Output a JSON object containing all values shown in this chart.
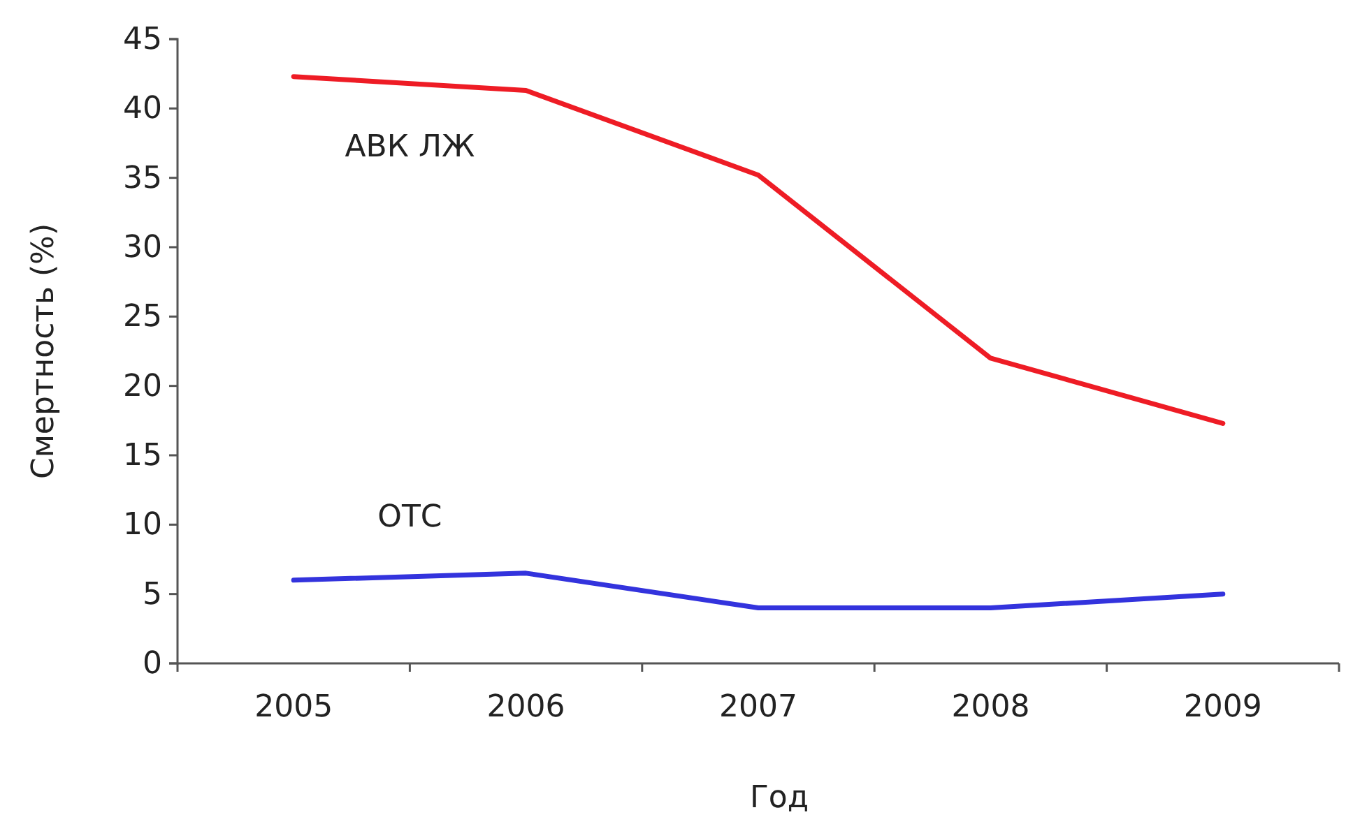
{
  "chart_data": {
    "type": "line",
    "xlabel": "Год",
    "ylabel": "Смертность (%)",
    "categories": [
      "2005",
      "2006",
      "2007",
      "2008",
      "2009"
    ],
    "series": [
      {
        "name": "АВК ЛЖ",
        "color": "#ee1c25",
        "values": [
          42.3,
          41.3,
          35.2,
          22,
          17.3
        ]
      },
      {
        "name": "ОТС",
        "color": "#3333dd",
        "values": [
          6,
          6.5,
          4,
          4,
          5
        ]
      }
    ],
    "ylim": [
      0,
      45
    ],
    "yticks": [
      0,
      5,
      10,
      15,
      20,
      25,
      30,
      35,
      40,
      45
    ],
    "grid": false,
    "legend": false,
    "marker": "none",
    "line_style": "solid"
  }
}
